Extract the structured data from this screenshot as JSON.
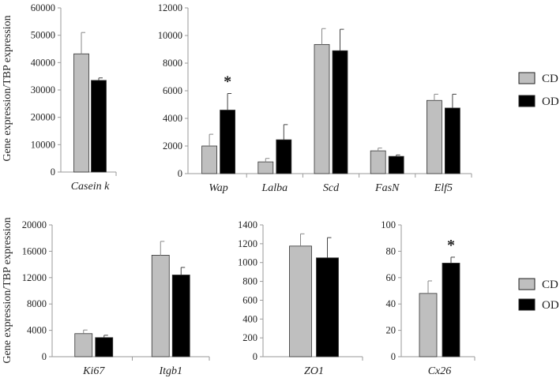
{
  "figure": {
    "ylabel": "Gene expression/TBP expression",
    "legend": [
      {
        "name": "CD",
        "color": "#bfbfbf"
      },
      {
        "name": "OD",
        "color": "#000000"
      }
    ],
    "significance_marker": "*"
  },
  "chart_data": [
    {
      "type": "bar",
      "categories": [
        "Casein k"
      ],
      "series": [
        {
          "name": "CD",
          "values": [
            43200
          ],
          "errors": [
            7800
          ]
        },
        {
          "name": "OD",
          "values": [
            33500
          ],
          "errors": [
            900
          ]
        }
      ],
      "ylabel": "Gene expression/TBP expression",
      "ylim": [
        0,
        60000
      ],
      "yticks": [
        0,
        10000,
        20000,
        30000,
        40000,
        50000,
        60000
      ],
      "grid": false,
      "significant": []
    },
    {
      "type": "bar",
      "categories": [
        "Wap",
        "Lalba",
        "Scd",
        "FasN",
        "Elf5"
      ],
      "series": [
        {
          "name": "CD",
          "values": [
            2000,
            850,
            9350,
            1650,
            5300
          ],
          "errors": [
            850,
            250,
            1150,
            200,
            450
          ]
        },
        {
          "name": "OD",
          "values": [
            4600,
            2450,
            8900,
            1250,
            4750
          ],
          "errors": [
            1200,
            1100,
            1550,
            100,
            1000
          ]
        }
      ],
      "ylim": [
        0,
        12000
      ],
      "yticks": [
        0,
        2000,
        4000,
        6000,
        8000,
        10000,
        12000
      ],
      "grid": false,
      "significant": [
        "Wap"
      ]
    },
    {
      "type": "bar",
      "categories": [
        "Ki67",
        "Itgb1"
      ],
      "series": [
        {
          "name": "CD",
          "values": [
            3500,
            15400
          ],
          "errors": [
            550,
            2100
          ]
        },
        {
          "name": "OD",
          "values": [
            2900,
            12400
          ],
          "errors": [
            350,
            1150
          ]
        }
      ],
      "ylabel": "Gene expression/TBP expression",
      "ylim": [
        0,
        20000
      ],
      "yticks": [
        0,
        4000,
        8000,
        12000,
        16000,
        20000
      ],
      "grid": false,
      "significant": []
    },
    {
      "type": "bar",
      "categories": [
        "ZO1"
      ],
      "series": [
        {
          "name": "CD",
          "values": [
            1175
          ],
          "errors": [
            130
          ]
        },
        {
          "name": "OD",
          "values": [
            1050
          ],
          "errors": [
            215
          ]
        }
      ],
      "ylim": [
        0,
        1400
      ],
      "yticks": [
        0,
        200,
        400,
        600,
        800,
        1000,
        1200,
        1400
      ],
      "grid": false,
      "significant": []
    },
    {
      "type": "bar",
      "categories": [
        "Cx26"
      ],
      "series": [
        {
          "name": "CD",
          "values": [
            48
          ],
          "errors": [
            9.5
          ]
        },
        {
          "name": "OD",
          "values": [
            71
          ],
          "errors": [
            4.5
          ]
        }
      ],
      "ylim": [
        0,
        100
      ],
      "yticks": [
        0,
        20,
        40,
        60,
        80,
        100
      ],
      "grid": false,
      "significant": [
        "Cx26"
      ]
    }
  ]
}
